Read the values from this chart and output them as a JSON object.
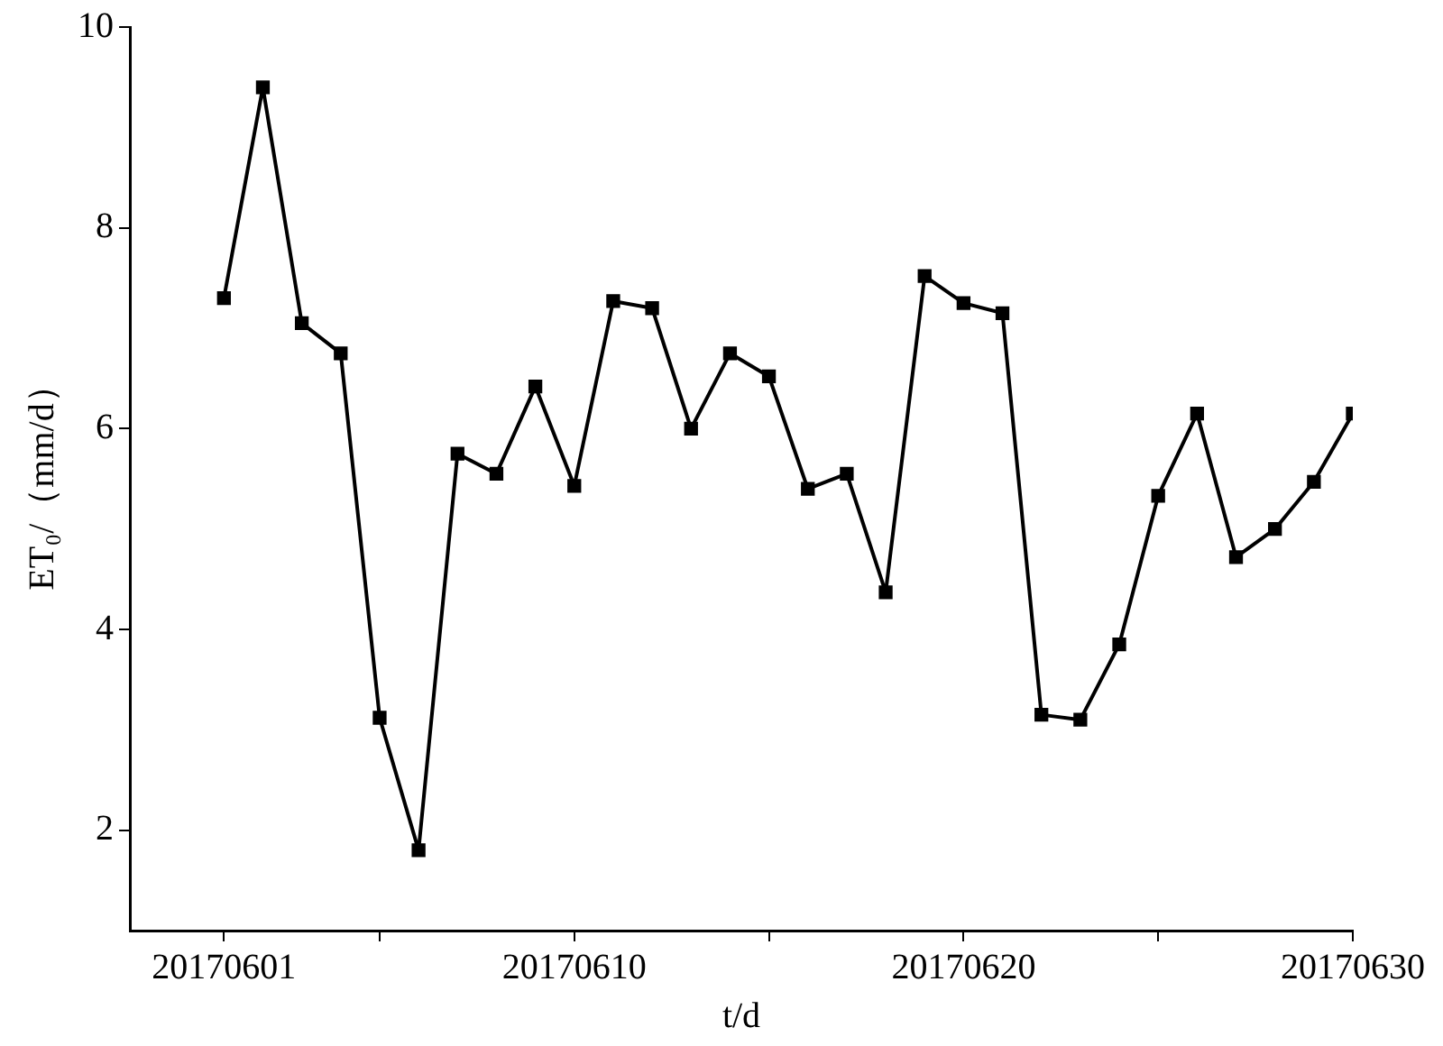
{
  "chart_data": {
    "type": "line",
    "xlabel": "t/d",
    "ylabel": "ET₀/（mm/d）",
    "x": [
      "2017-06-01",
      "2017-06-02",
      "2017-06-03",
      "2017-06-04",
      "2017-06-05",
      "2017-06-06",
      "2017-06-07",
      "2017-06-08",
      "2017-06-09",
      "2017-06-10",
      "2017-06-11",
      "2017-06-12",
      "2017-06-13",
      "2017-06-14",
      "2017-06-15",
      "2017-06-16",
      "2017-06-17",
      "2017-06-18",
      "2017-06-19",
      "2017-06-20",
      "2017-06-21",
      "2017-06-22",
      "2017-06-23",
      "2017-06-24",
      "2017-06-25",
      "2017-06-26",
      "2017-06-27",
      "2017-06-28",
      "2017-06-29",
      "2017-06-30"
    ],
    "series": [
      {
        "color": "#000000",
        "values": [
          7.3,
          9.4,
          7.05,
          6.75,
          3.12,
          1.8,
          5.75,
          5.55,
          6.42,
          5.43,
          7.27,
          7.2,
          6.0,
          6.75,
          6.52,
          5.4,
          5.55,
          4.37,
          7.52,
          7.25,
          7.15,
          3.15,
          3.1,
          3.85,
          5.33,
          6.15,
          4.72,
          5.0,
          5.47,
          6.15
        ]
      }
    ],
    "xlim": [
      "2017-05-29T14:00",
      "2017-06-30"
    ],
    "xticks": [
      {
        "value": "2017-06-01",
        "label": "20170601"
      },
      {
        "value": "2017-06-05",
        "label": null
      },
      {
        "value": "2017-06-10",
        "label": "20170610"
      },
      {
        "value": "2017-06-15",
        "label": null
      },
      {
        "value": "2017-06-20",
        "label": "20170620"
      },
      {
        "value": "2017-06-25",
        "label": null
      },
      {
        "value": "2017-06-30",
        "label": "20170630"
      }
    ],
    "ylim": [
      1,
      10
    ],
    "yticks": [
      2,
      4,
      6,
      8,
      10
    ],
    "marker": "square",
    "line_style": "solid"
  }
}
